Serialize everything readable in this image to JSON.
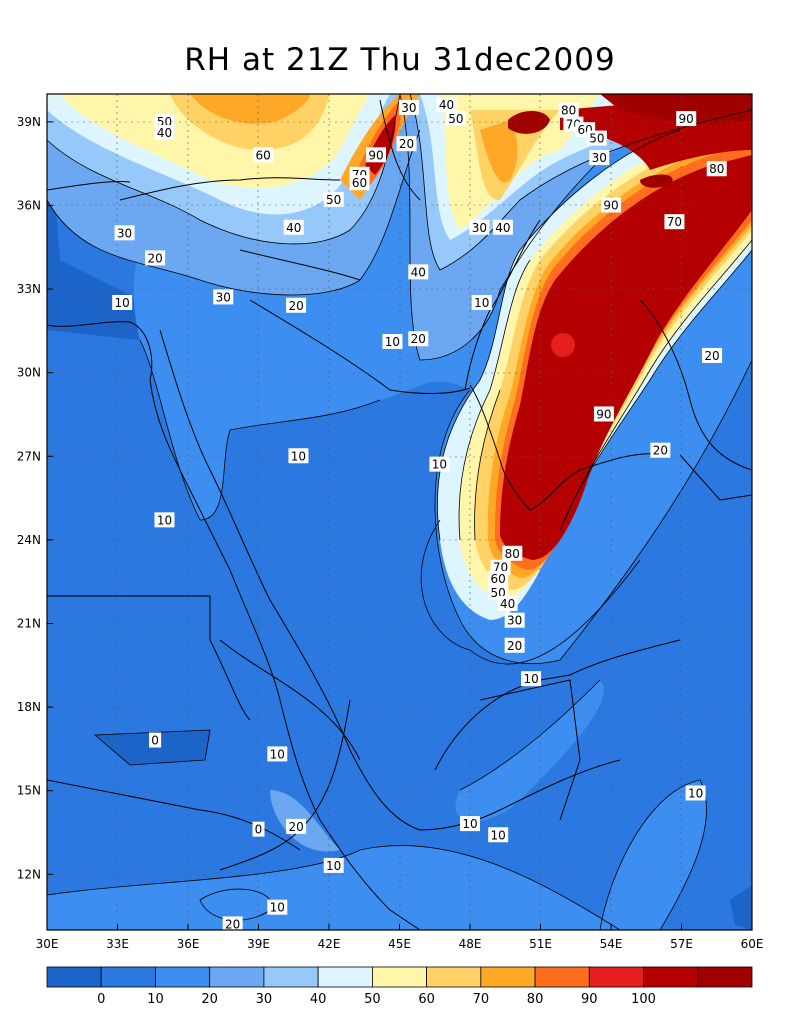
{
  "title": "RH at 21Z Thu 31dec2009",
  "chart_data": {
    "type": "heatmap",
    "title": "RH at 21Z Thu 31dec2009",
    "x_ticks": [
      "30E",
      "33E",
      "36E",
      "39E",
      "42E",
      "45E",
      "48E",
      "51E",
      "54E",
      "57E",
      "60E"
    ],
    "y_ticks": [
      "39N",
      "36N",
      "33N",
      "30N",
      "27N",
      "24N",
      "21N",
      "18N",
      "15N",
      "12N"
    ],
    "x_range_deg": [
      30,
      60
    ],
    "y_range_deg": [
      10,
      40
    ],
    "colorbar": {
      "colors": [
        "#1c64c8",
        "#2a78e0",
        "#3c8ff0",
        "#6ca8f2",
        "#96c8fa",
        "#dcf5ff",
        "#fff6aa",
        "#ffd266",
        "#ffa828",
        "#ff6e1e",
        "#e61e1e",
        "#b40000",
        "#a00000"
      ],
      "labels": [
        "0",
        "10",
        "20",
        "30",
        "40",
        "50",
        "60",
        "70",
        "80",
        "90",
        "100"
      ]
    },
    "contour_labels": [
      {
        "text": "50",
        "lon": 35.0,
        "lat": 39.0
      },
      {
        "text": "40",
        "lon": 35.0,
        "lat": 38.6
      },
      {
        "text": "60",
        "lon": 39.2,
        "lat": 37.8
      },
      {
        "text": "90",
        "lon": 44.0,
        "lat": 37.8
      },
      {
        "text": "70",
        "lon": 43.3,
        "lat": 37.1
      },
      {
        "text": "60",
        "lon": 43.3,
        "lat": 36.8
      },
      {
        "text": "50",
        "lon": 42.2,
        "lat": 36.2
      },
      {
        "text": "40",
        "lon": 40.5,
        "lat": 35.2
      },
      {
        "text": "30",
        "lon": 45.4,
        "lat": 39.5
      },
      {
        "text": "40",
        "lon": 47.0,
        "lat": 39.6
      },
      {
        "text": "50",
        "lon": 47.4,
        "lat": 39.1
      },
      {
        "text": "20",
        "lon": 45.3,
        "lat": 38.2
      },
      {
        "text": "80",
        "lon": 52.2,
        "lat": 39.4
      },
      {
        "text": "70",
        "lon": 52.4,
        "lat": 38.9
      },
      {
        "text": "60",
        "lon": 52.9,
        "lat": 38.7
      },
      {
        "text": "50",
        "lon": 53.4,
        "lat": 38.4
      },
      {
        "text": "30",
        "lon": 53.5,
        "lat": 37.7
      },
      {
        "text": "90",
        "lon": 57.2,
        "lat": 39.1
      },
      {
        "text": "80",
        "lon": 58.5,
        "lat": 37.3
      },
      {
        "text": "90",
        "lon": 54.0,
        "lat": 36.0
      },
      {
        "text": "70",
        "lon": 56.7,
        "lat": 35.4
      },
      {
        "text": "30",
        "lon": 48.4,
        "lat": 35.2
      },
      {
        "text": "40",
        "lon": 49.4,
        "lat": 35.2
      },
      {
        "text": "40",
        "lon": 45.8,
        "lat": 33.6
      },
      {
        "text": "30",
        "lon": 33.3,
        "lat": 35.0
      },
      {
        "text": "20",
        "lon": 34.6,
        "lat": 34.1
      },
      {
        "text": "30",
        "lon": 37.5,
        "lat": 32.7
      },
      {
        "text": "10",
        "lon": 33.2,
        "lat": 32.5
      },
      {
        "text": "20",
        "lon": 40.6,
        "lat": 32.4
      },
      {
        "text": "10",
        "lon": 48.5,
        "lat": 32.5
      },
      {
        "text": "10",
        "lon": 44.7,
        "lat": 31.1
      },
      {
        "text": "20",
        "lon": 45.8,
        "lat": 31.2
      },
      {
        "text": "20",
        "lon": 58.3,
        "lat": 30.6
      },
      {
        "text": "90",
        "lon": 53.7,
        "lat": 28.5
      },
      {
        "text": "20",
        "lon": 56.1,
        "lat": 27.2
      },
      {
        "text": "10",
        "lon": 40.7,
        "lat": 27.0
      },
      {
        "text": "10",
        "lon": 46.7,
        "lat": 26.7
      },
      {
        "text": "10",
        "lon": 35.0,
        "lat": 24.7
      },
      {
        "text": "80",
        "lon": 49.8,
        "lat": 23.5
      },
      {
        "text": "70",
        "lon": 49.3,
        "lat": 23.0
      },
      {
        "text": "60",
        "lon": 49.2,
        "lat": 22.6
      },
      {
        "text": "50",
        "lon": 49.2,
        "lat": 22.1
      },
      {
        "text": "40",
        "lon": 49.6,
        "lat": 21.7
      },
      {
        "text": "30",
        "lon": 49.9,
        "lat": 21.1
      },
      {
        "text": "20",
        "lon": 49.9,
        "lat": 20.2
      },
      {
        "text": "10",
        "lon": 50.6,
        "lat": 19.0
      },
      {
        "text": "0",
        "lon": 34.6,
        "lat": 16.8
      },
      {
        "text": "10",
        "lon": 39.8,
        "lat": 16.3
      },
      {
        "text": "10",
        "lon": 57.6,
        "lat": 14.9
      },
      {
        "text": "0",
        "lon": 39.0,
        "lat": 13.6
      },
      {
        "text": "20",
        "lon": 40.6,
        "lat": 13.7
      },
      {
        "text": "10",
        "lon": 48.0,
        "lat": 13.8
      },
      {
        "text": "10",
        "lon": 49.2,
        "lat": 13.4
      },
      {
        "text": "10",
        "lon": 42.2,
        "lat": 12.3
      },
      {
        "text": "10",
        "lon": 39.8,
        "lat": 10.8
      },
      {
        "text": "20",
        "lon": 37.9,
        "lat": 10.2
      }
    ]
  }
}
